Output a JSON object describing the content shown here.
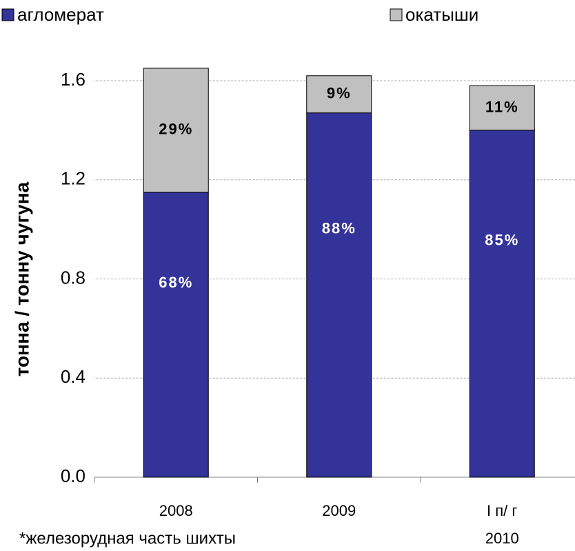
{
  "chart_data": {
    "type": "stacked_bar",
    "y_label": "тонна / тонну  чугуна",
    "footnote": "*железорудная часть шихты",
    "categories": [
      [
        "2008"
      ],
      [
        "2009"
      ],
      [
        "I п/ г",
        "2010"
      ]
    ],
    "series": [
      {
        "name": "агломерат",
        "color": "#333399",
        "values": [
          1.15,
          1.47,
          1.4
        ],
        "segment_labels": [
          "68%",
          "88%",
          "85%"
        ],
        "label_color": "#ffffff"
      },
      {
        "name": "окатыши",
        "color": "#c0c0c0",
        "values": [
          0.5,
          0.15,
          0.18
        ],
        "segment_labels": [
          "29%",
          "9%",
          "11%"
        ],
        "label_color": "#000000"
      }
    ],
    "ylim": [
      0,
      1.8
    ],
    "yticks": [
      {
        "value": 0,
        "label": "0.0"
      },
      0.4,
      0.8,
      1.2,
      1.6
    ],
    "grid": true
  }
}
